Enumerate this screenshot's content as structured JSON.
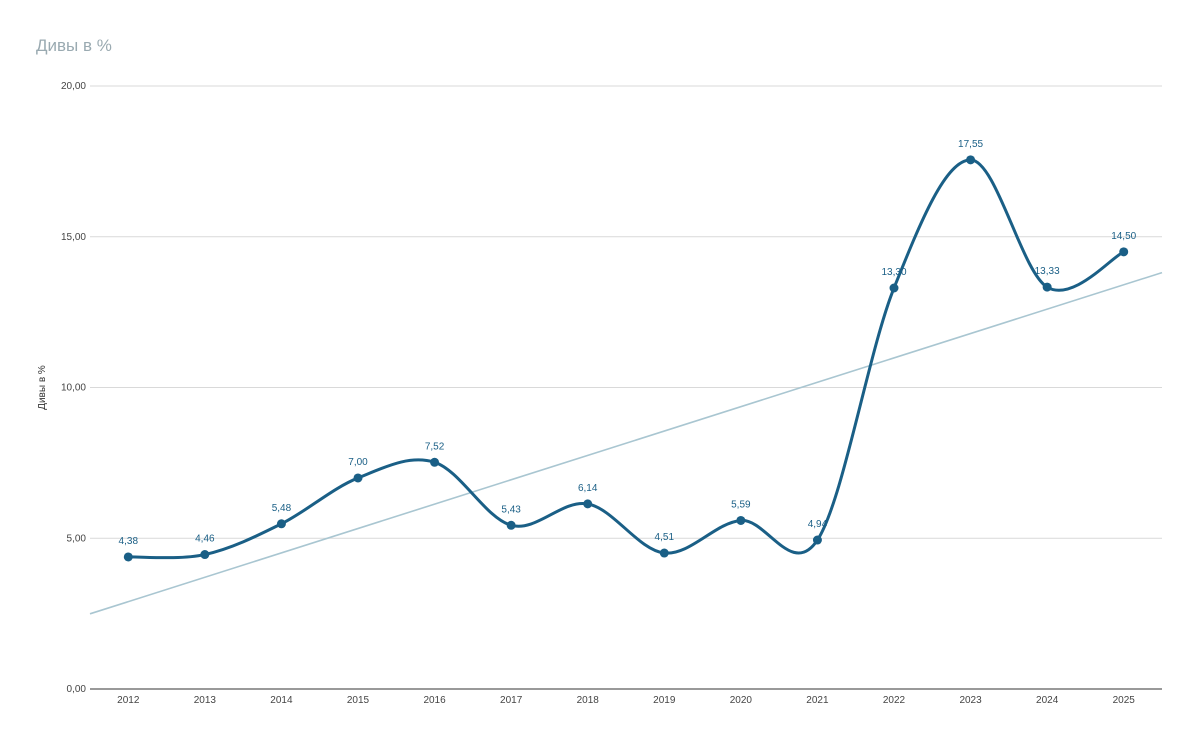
{
  "chart_data": {
    "type": "line",
    "title": "Дивы в %",
    "ylabel": "Дивы в %",
    "xlabel": "",
    "categories": [
      "2012",
      "2013",
      "2014",
      "2015",
      "2016",
      "2017",
      "2018",
      "2019",
      "2020",
      "2021",
      "2022",
      "2023",
      "2024",
      "2025"
    ],
    "series": [
      {
        "values": [
          4.38,
          4.46,
          5.48,
          7.0,
          7.52,
          5.43,
          6.14,
          4.51,
          5.59,
          4.94,
          13.3,
          17.55,
          13.33,
          14.5
        ],
        "data_labels": [
          "4,38",
          "4,46",
          "5,48",
          "7,00",
          "7,52",
          "5,43",
          "6,14",
          "4,51",
          "5,59",
          "4,94",
          "13,30",
          "17,55",
          "13,33",
          "14,50"
        ],
        "color": "#1a5f86",
        "smooth": true
      }
    ],
    "trendline": {
      "type": "linear",
      "color": "#a9c6d1"
    },
    "ylim": [
      0,
      20
    ],
    "yticks": [
      0,
      5,
      10,
      15,
      20
    ],
    "ytick_labels": [
      "0,00",
      "5,00",
      "10,00",
      "15,00",
      "20,00"
    ],
    "grid": true,
    "legend": "none"
  }
}
